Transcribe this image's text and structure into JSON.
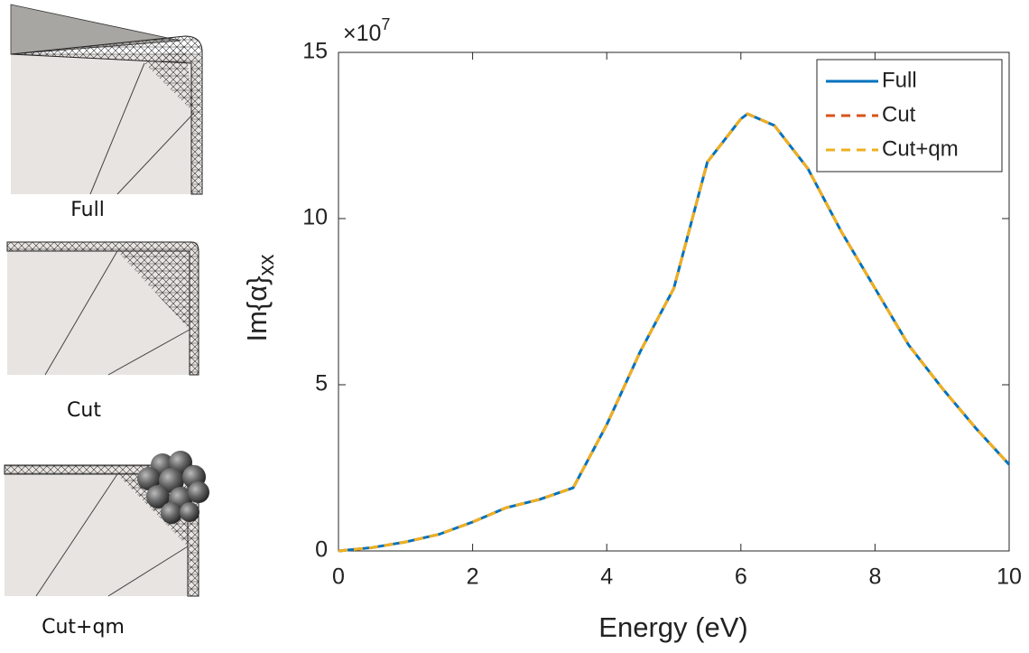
{
  "image_labels": [
    "Full",
    "Cut",
    "Cut+qm"
  ],
  "chart_data": {
    "type": "line",
    "xlabel": "Energy (eV)",
    "ylabel": "Im{α}",
    "ylabel_subscript": "xx",
    "y_multiplier": "×10",
    "y_multiplier_exponent": "7",
    "x": [
      0,
      0.5,
      1,
      1.5,
      2,
      2.5,
      3,
      3.5,
      4,
      4.5,
      5,
      5.5,
      6,
      6.1,
      6.5,
      7,
      7.5,
      8,
      8.5,
      9,
      9.5,
      10
    ],
    "series": [
      {
        "name": "Full",
        "color": "#0072bd",
        "dashed": false,
        "values": [
          0,
          0.1,
          0.27,
          0.5,
          0.87,
          1.3,
          1.55,
          1.9,
          3.8,
          6.0,
          7.9,
          11.7,
          13.0,
          13.15,
          12.8,
          11.5,
          9.6,
          7.9,
          6.2,
          4.9,
          3.7,
          2.6
        ]
      },
      {
        "name": "Cut",
        "color": "#d95319",
        "dashed": true,
        "values": [
          0,
          0.1,
          0.27,
          0.5,
          0.87,
          1.3,
          1.55,
          1.9,
          3.8,
          6.0,
          7.9,
          11.7,
          13.0,
          13.15,
          12.8,
          11.5,
          9.6,
          7.9,
          6.2,
          4.9,
          3.7,
          2.6
        ]
      },
      {
        "name": "Cut+qm",
        "color": "#edb120",
        "dashed": true,
        "values": [
          0,
          0.1,
          0.27,
          0.5,
          0.87,
          1.3,
          1.55,
          1.9,
          3.8,
          6.0,
          7.9,
          11.7,
          13.0,
          13.15,
          12.8,
          11.5,
          9.6,
          7.9,
          6.2,
          4.9,
          3.7,
          2.6
        ]
      }
    ],
    "xlim": [
      0,
      10
    ],
    "xticks": [
      0,
      2,
      4,
      6,
      8,
      10
    ],
    "ylim": [
      0,
      15
    ],
    "yticks": [
      0,
      5,
      10,
      15
    ],
    "grid": false,
    "legend": "top-right"
  }
}
